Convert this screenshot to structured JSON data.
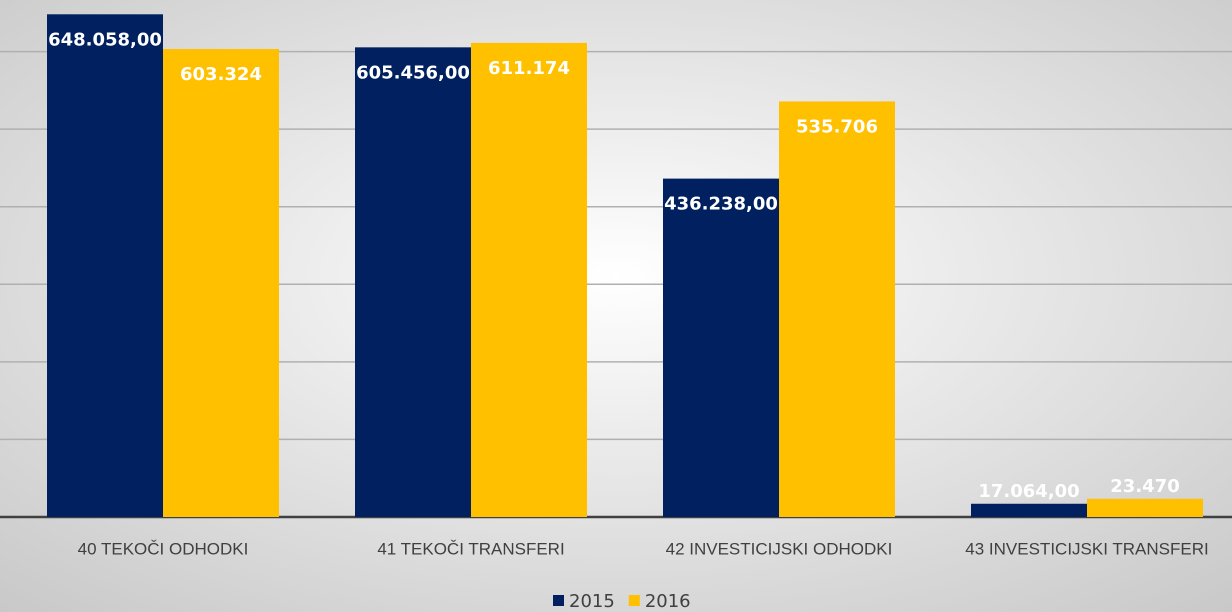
{
  "chart_data": {
    "type": "bar",
    "categories": [
      "40 TEKOČI ODHODKI",
      "41 TEKOČI TRANSFERI",
      "42 INVESTICIJSKI ODHODKI",
      "43 INVESTICIJSKI TRANSFERI"
    ],
    "series": [
      {
        "name": "2015",
        "color": "#002060",
        "values": [
          648058,
          605456,
          436238,
          17064
        ],
        "value_labels": [
          "648.058,00",
          "605.456,00",
          "436.238,00",
          "17.064,00"
        ]
      },
      {
        "name": "2016",
        "color": "#ffc000",
        "values": [
          603324,
          611174,
          535706,
          23470
        ],
        "value_labels": [
          "603.324",
          "611.174",
          "535.706",
          "23.470"
        ]
      }
    ],
    "ylim": [
      0,
      700000
    ],
    "yticks": [
      0,
      100000,
      200000,
      300000,
      400000,
      500000,
      600000
    ],
    "grid": true,
    "legend": "bottom"
  }
}
